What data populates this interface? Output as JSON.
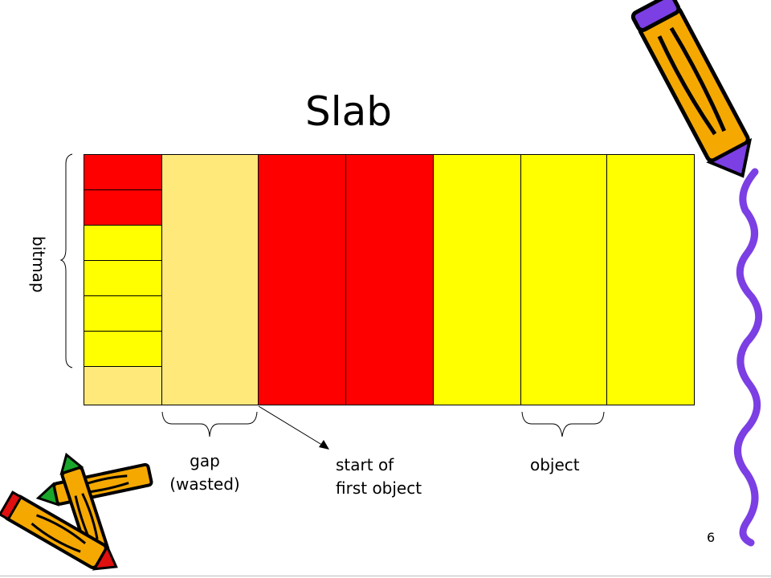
{
  "slide": {
    "title": "Slab",
    "page_number": "6"
  },
  "labels": {
    "bitmap": "bitmap",
    "gap": "gap\n(wasted)",
    "start": "start of\nfirst object",
    "object": "object"
  },
  "colors": {
    "used": "#ff0000",
    "free": "#ffff00",
    "wasted": "#ffe97a",
    "wave": "#7b3fe4",
    "pencil_body": "#f5a800",
    "pencil_tip_green": "#1aa62a",
    "pencil_tip_red": "#e01010"
  },
  "diagram": {
    "bitmap_bits": [
      "used",
      "used",
      "free",
      "free",
      "free",
      "free",
      "unused"
    ],
    "objects": [
      "used",
      "used",
      "free",
      "free",
      "free"
    ]
  }
}
